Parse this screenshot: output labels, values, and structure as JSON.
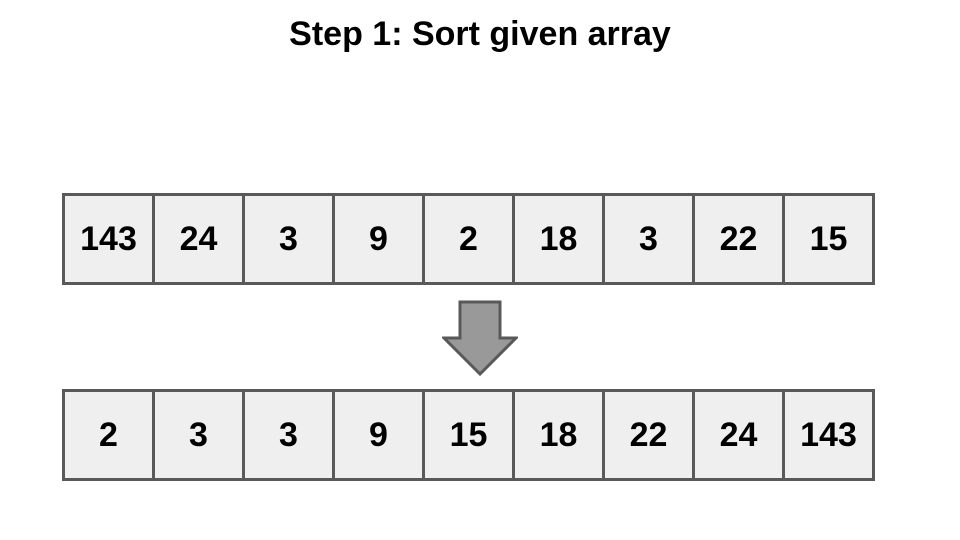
{
  "title": "Step 1: Sort given array",
  "input_array": [
    "143",
    "24",
    "3",
    "9",
    "2",
    "18",
    "3",
    "22",
    "15"
  ],
  "sorted_array": [
    "2",
    "3",
    "3",
    "9",
    "15",
    "18",
    "22",
    "24",
    "143"
  ],
  "colors": {
    "cell_fill": "#efefef",
    "cell_border": "#595959",
    "arrow_fill": "#999999",
    "arrow_stroke": "#595959"
  },
  "icons": {
    "arrow": "down-arrow-icon"
  }
}
